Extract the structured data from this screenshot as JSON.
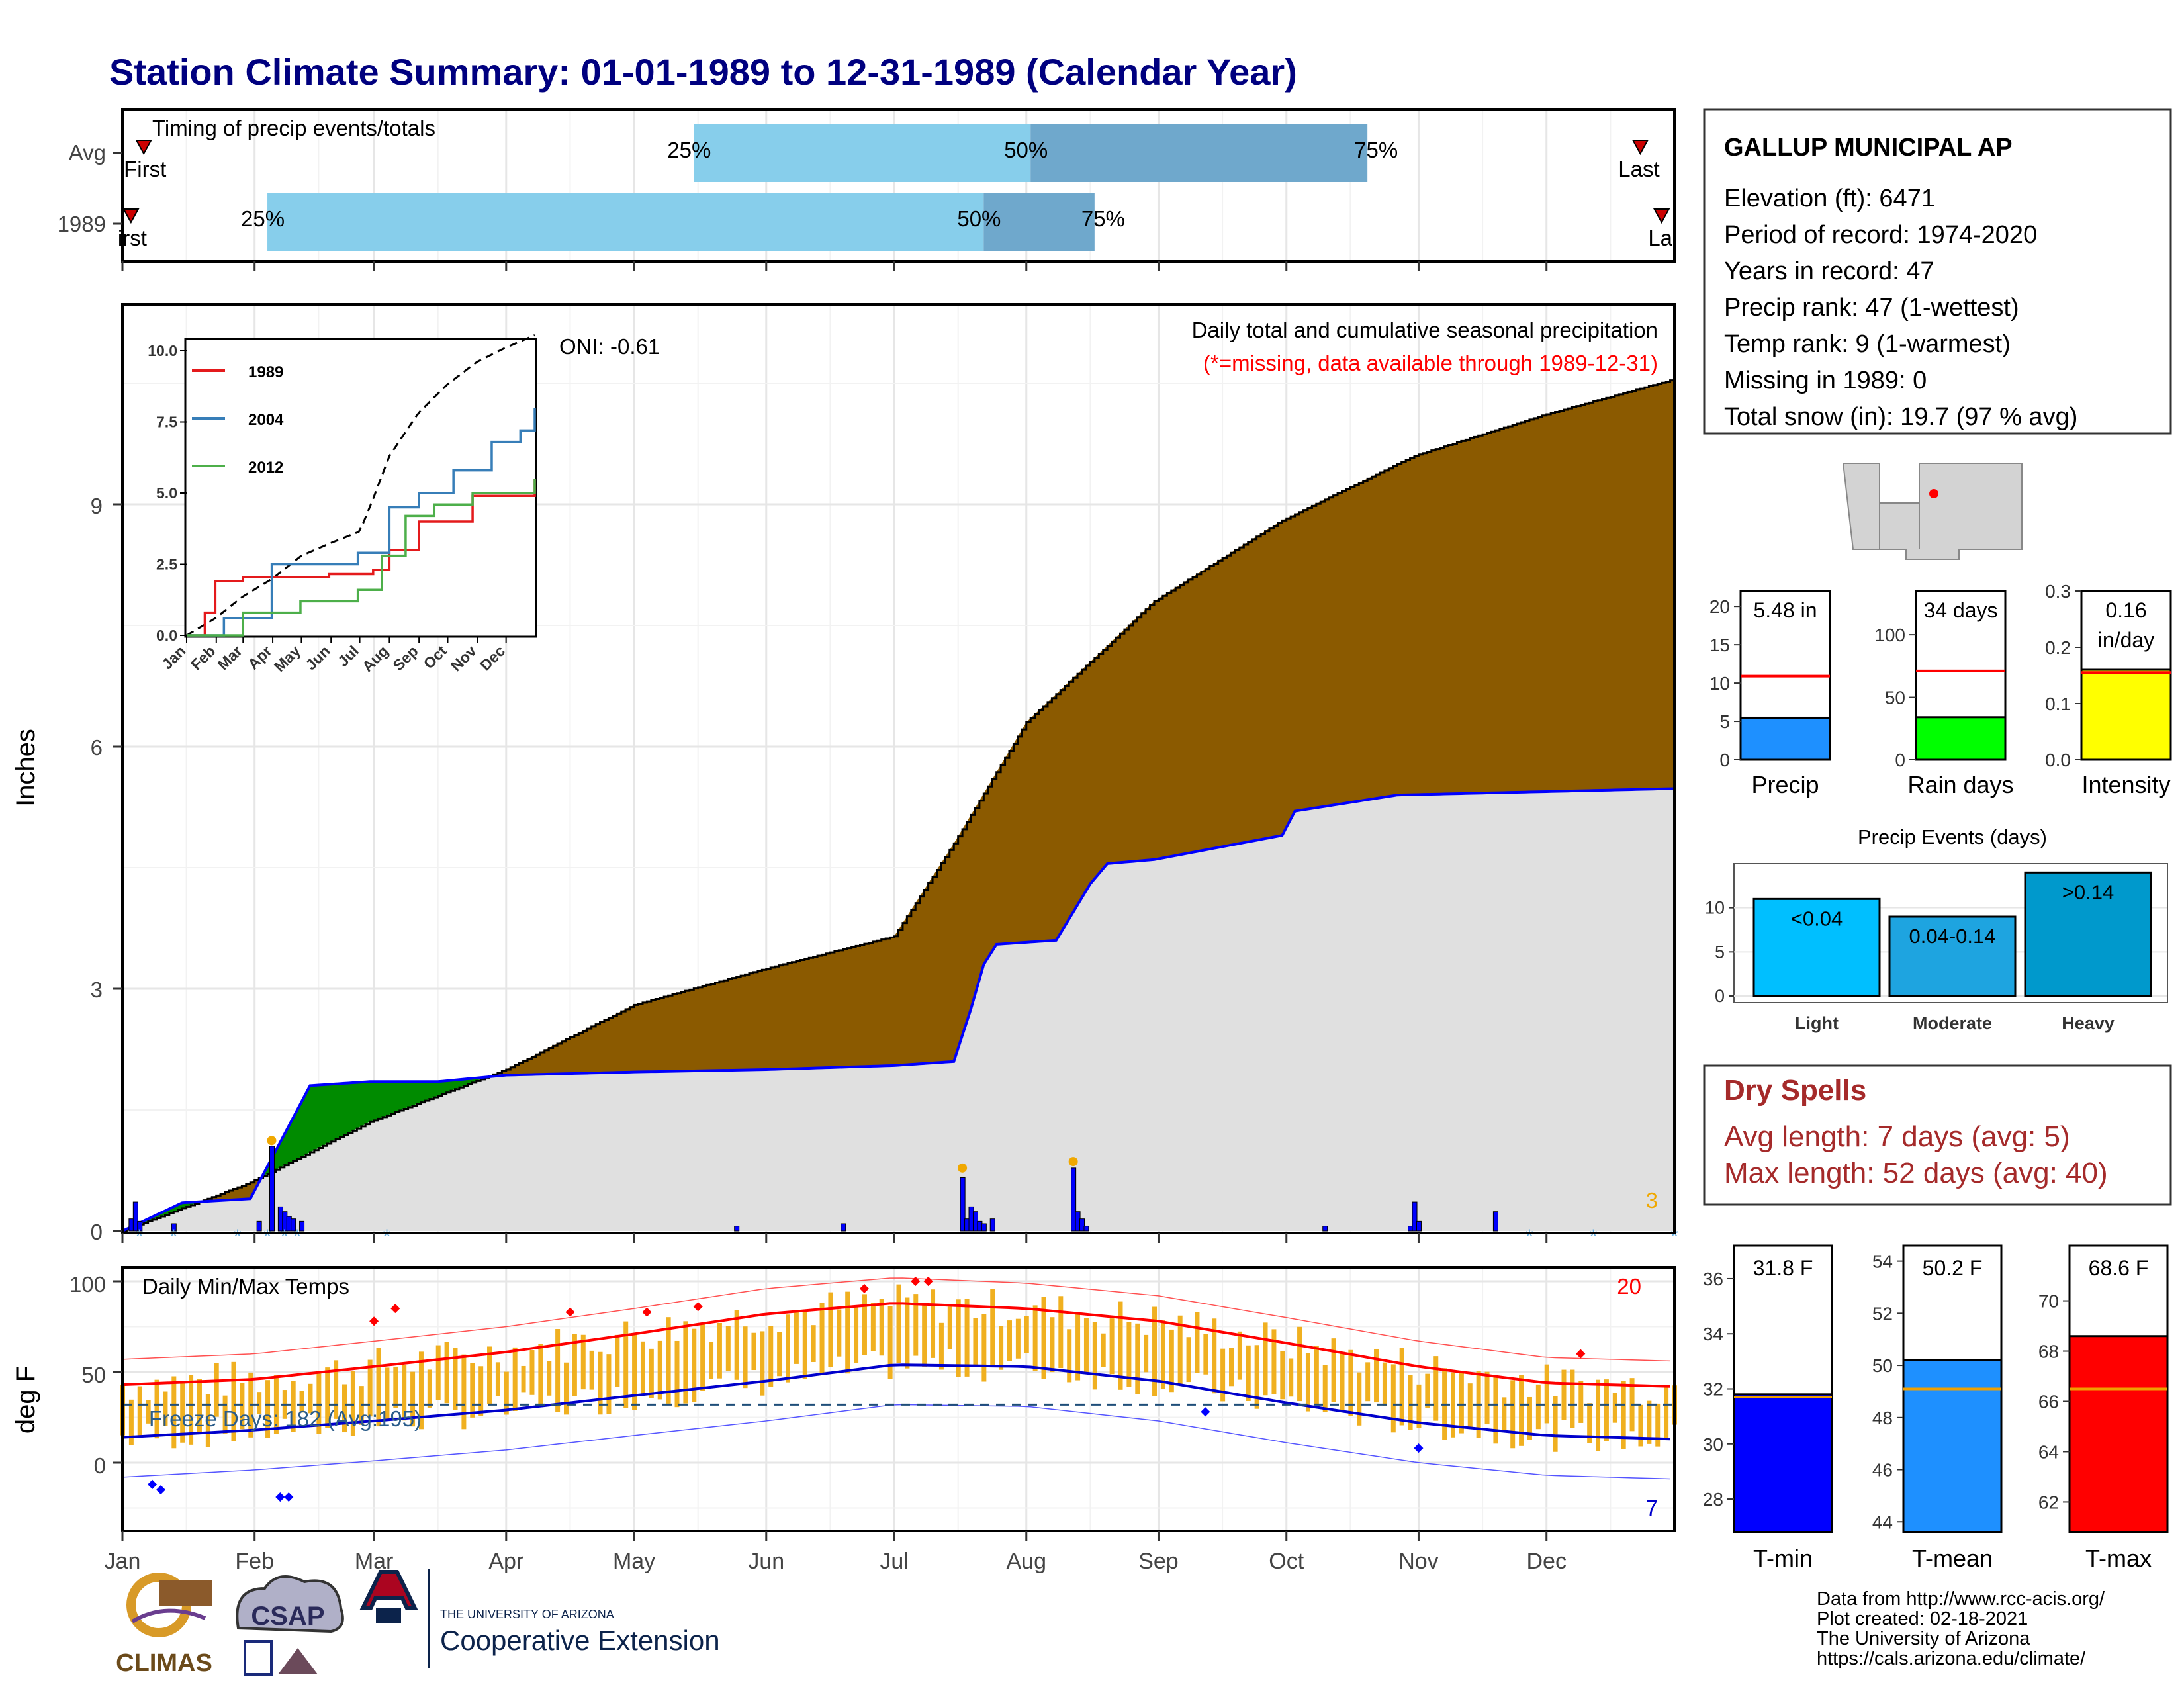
{
  "title": "Station Climate Summary: 01-01-1989 to 12-31-1989 (Calendar Year)",
  "colors": {
    "title": "#00007f",
    "light_blue": "#87ceeb",
    "mid_blue": "#6fa8cc",
    "brown": "#8b5a00",
    "green": "#008b00",
    "grey_fill": "#e0e0e0",
    "blue_line": "#0000ff",
    "orange": "#f0b020",
    "red": "#ff0000",
    "dry_red": "#a52a2a"
  },
  "timing_panel": {
    "label": "Timing of precip events/totals",
    "rows": [
      {
        "name": "Avg",
        "q25": "25%",
        "q50": "50%",
        "q75": "75%",
        "first": "First",
        "last": "Last",
        "q25_day": 135,
        "q50_day": 214,
        "q75_day": 293,
        "first_day": 6,
        "last_day": 357
      },
      {
        "name": "1989",
        "q25": "25%",
        "q50": "50%",
        "q75": "75%",
        "first": "irst",
        "last": "La",
        "q25_day": 35,
        "q50_day": 203,
        "q75_day": 229,
        "first_day": 3,
        "last_day": 362
      }
    ]
  },
  "precip_panel": {
    "y_label": "Inches",
    "y_ticks": [
      "0",
      "3",
      "6",
      "9"
    ],
    "annotation_title": "Daily total and cumulative seasonal precipitation",
    "annotation_missing": "(*=missing, data available through 1989-12-31)",
    "oni": "ONI: -0.61",
    "count_label": "3"
  },
  "temp_panel": {
    "y_label": "deg F",
    "title": "Daily Min/Max Temps",
    "freeze": "Freeze Days: 182 (Avg:195)",
    "y_ticks": [
      "0",
      "50",
      "100"
    ],
    "count_hot": "20",
    "count_cold": "7"
  },
  "months": [
    "Jan",
    "Feb",
    "Mar",
    "Apr",
    "May",
    "Jun",
    "Jul",
    "Aug",
    "Sep",
    "Oct",
    "Nov",
    "Dec"
  ],
  "inset": {
    "x_ticks": [
      "Jan",
      "Feb",
      "Mar",
      "Apr",
      "May",
      "Jun",
      "Jul",
      "Aug",
      "Sep",
      "Oct",
      "Nov",
      "Dec"
    ],
    "y_ticks": [
      "0.0",
      "2.5",
      "5.0",
      "7.5",
      "10.0"
    ],
    "legend": [
      {
        "name": "1989",
        "color": "#e41a1c"
      },
      {
        "name": "2004",
        "color": "#377eb8"
      },
      {
        "name": "2012",
        "color": "#4daf4a"
      }
    ]
  },
  "station": {
    "name": "GALLUP MUNICIPAL AP",
    "elevation": "Elevation (ft): 6471",
    "period": "Period of record: 1974-2020",
    "years": "Years in record: 47",
    "precip_rank": "Precip rank: 47 (1-wettest)",
    "temp_rank": "Temp rank: 9 (1-warmest)",
    "missing": "Missing in 1989: 0",
    "snow": "Total snow (in): 19.7 (97 % avg)"
  },
  "mini_bars": {
    "precip": {
      "label": "Precip",
      "value_text": "5.48 in",
      "ticks": [
        "0",
        "5",
        "10",
        "15",
        "20"
      ],
      "value": 5.48,
      "avg": 10.9,
      "max": 22
    },
    "rain_days": {
      "label": "Rain days",
      "value_text": "34 days",
      "ticks": [
        "0",
        "50",
        "100"
      ],
      "value": 34,
      "avg": 71,
      "max": 135
    },
    "intensity": {
      "label": "Intensity",
      "value_text_1": "0.16",
      "value_text_2": "in/day",
      "ticks": [
        "0.0",
        "0.1",
        "0.2",
        "0.3"
      ],
      "value": 0.16,
      "avg": 0.155,
      "max": 0.3
    }
  },
  "precip_events": {
    "title": "Precip Events (days)",
    "ticks": [
      "0",
      "5",
      "10"
    ],
    "bars": [
      {
        "category": "Light",
        "label": "<0.04",
        "value": 11
      },
      {
        "category": "Moderate",
        "label": "0.04-0.14",
        "value": 9
      },
      {
        "category": "Heavy",
        "label": ">0.14",
        "value": 14
      }
    ]
  },
  "dry_spells": {
    "title": "Dry Spells",
    "avg": "Avg length: 7 days (avg: 5)",
    "max": "Max length: 52 days (avg: 40)"
  },
  "temp_bars": {
    "tmin": {
      "label": "T-min",
      "value_text": "31.8 F",
      "ticks": [
        "28",
        "30",
        "32",
        "34",
        "36"
      ],
      "value": 31.8,
      "avg": 31.7
    },
    "tmean": {
      "label": "T-mean",
      "value_text": "50.2 F",
      "ticks": [
        "44",
        "46",
        "48",
        "50",
        "52",
        "54"
      ],
      "value": 50.2,
      "avg": 49.1
    },
    "tmax": {
      "label": "T-max",
      "value_text": "68.6 F",
      "ticks": [
        "62",
        "64",
        "66",
        "68",
        "70"
      ],
      "value": 68.6,
      "avg": 66.5
    }
  },
  "footer": {
    "line1": "Data from http://www.rcc-acis.org/",
    "line2": "Plot created: 02-18-2021",
    "line3": "The University of Arizona",
    "line4": "https://cals.arizona.edu/climate/",
    "logo_climas": "CLIMAS",
    "logo_csap": "CSAP",
    "ua_small": "THE UNIVERSITY OF ARIZONA",
    "ua_big": "Cooperative Extension"
  },
  "chart_data": [
    {
      "type": "area",
      "title": "Daily total and cumulative seasonal precipitation",
      "ylabel": "Inches",
      "ylim": [
        0,
        11.5
      ],
      "series": [
        {
          "name": "1989",
          "x": [
            1,
            15,
            31,
            35,
            45,
            59,
            75,
            91,
            121,
            152,
            182,
            196,
            200,
            203,
            206,
            220,
            228,
            232,
            243,
            273,
            276,
            300,
            365
          ],
          "values": [
            0.0,
            0.35,
            0.4,
            0.8,
            1.8,
            1.85,
            1.85,
            1.93,
            1.97,
            2.0,
            2.05,
            2.1,
            2.75,
            3.3,
            3.55,
            3.6,
            4.3,
            4.55,
            4.6,
            4.9,
            5.2,
            5.4,
            5.48
          ]
        },
        {
          "name": "Avg",
          "x": [
            1,
            31,
            59,
            91,
            121,
            152,
            182,
            196,
            213,
            243,
            273,
            304,
            334,
            365
          ],
          "values": [
            0.0,
            0.6,
            1.35,
            2.0,
            2.8,
            3.25,
            3.65,
            4.8,
            6.3,
            7.8,
            8.8,
            9.6,
            10.1,
            10.55
          ]
        }
      ]
    },
    {
      "type": "line",
      "title": "Daily Min/Max Temps",
      "ylabel": "deg F",
      "ylim": [
        -35,
        105
      ],
      "series": [
        {
          "name": "Avg max",
          "x": [
            1,
            32,
            60,
            91,
            121,
            152,
            182,
            213,
            244,
            274,
            305,
            335,
            365
          ],
          "values": [
            43,
            46,
            53,
            61,
            71,
            82,
            88,
            85,
            78,
            66,
            53,
            44,
            42
          ]
        },
        {
          "name": "Avg min",
          "x": [
            1,
            32,
            60,
            91,
            121,
            152,
            182,
            213,
            244,
            274,
            305,
            335,
            365
          ],
          "values": [
            14,
            18,
            23,
            29,
            37,
            45,
            54,
            53,
            45,
            33,
            22,
            15,
            13
          ]
        }
      ]
    }
  ]
}
